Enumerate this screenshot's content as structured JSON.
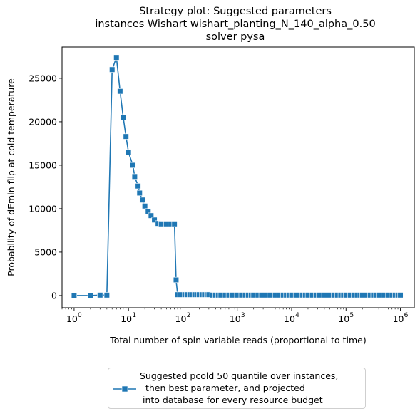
{
  "chart_data": {
    "type": "line",
    "title_lines": [
      "Strategy plot: Suggested parameters",
      "instances Wishart wishart_planting_N_140_alpha_0.50",
      "solver pysa"
    ],
    "xlabel": "Total number of spin variable reads (proportional to time)",
    "ylabel": "Probability of dEmin flip at cold temperature",
    "xscale": "log",
    "xlim": [
      0.6,
      1800000
    ],
    "ylim": [
      -1400,
      28600
    ],
    "x_ticks": [
      1,
      10,
      100,
      1000,
      10000,
      100000,
      1000000
    ],
    "x_tick_exponents": [
      "0",
      "1",
      "2",
      "3",
      "4",
      "5",
      "6"
    ],
    "y_ticks": [
      0,
      5000,
      10000,
      15000,
      20000,
      25000
    ],
    "y_tick_labels": [
      "0",
      "5000",
      "10000",
      "15000",
      "20000",
      "25000"
    ],
    "grid": false,
    "legend_position": "below",
    "series": [
      {
        "name": "Suggested pcold 50 quantile over instances,\n  then best parameter, and projected\n into database for every resource budget",
        "color": "#1f77b4",
        "marker": "square",
        "points": [
          [
            1,
            0
          ],
          [
            2,
            0
          ],
          [
            3,
            50
          ],
          [
            4,
            50
          ],
          [
            5,
            26000
          ],
          [
            6,
            27400
          ],
          [
            7,
            23500
          ],
          [
            8,
            20500
          ],
          [
            9,
            18300
          ],
          [
            10,
            16500
          ],
          [
            12,
            15000
          ],
          [
            13,
            13700
          ],
          [
            15,
            12600
          ],
          [
            16,
            11800
          ],
          [
            18,
            11000
          ],
          [
            20,
            10300
          ],
          [
            23,
            9700
          ],
          [
            26,
            9200
          ],
          [
            30,
            8700
          ],
          [
            35,
            8300
          ],
          [
            40,
            8250
          ],
          [
            50,
            8250
          ],
          [
            60,
            8250
          ],
          [
            70,
            8250
          ],
          [
            75,
            1800
          ],
          [
            80,
            100
          ],
          [
            90,
            100
          ],
          [
            100,
            100
          ],
          [
            110,
            100
          ],
          [
            120,
            100
          ],
          [
            135,
            100
          ],
          [
            150,
            100
          ],
          [
            165,
            100
          ],
          [
            185,
            100
          ],
          [
            200,
            100
          ],
          [
            225,
            100
          ],
          [
            250,
            100
          ],
          [
            280,
            100
          ],
          [
            300,
            100
          ],
          [
            350,
            50
          ],
          [
            400,
            50
          ],
          [
            450,
            50
          ],
          [
            500,
            50
          ],
          [
            600,
            50
          ],
          [
            700,
            50
          ],
          [
            800,
            50
          ],
          [
            900,
            50
          ],
          [
            1000,
            50
          ],
          [
            1200,
            50
          ],
          [
            1400,
            50
          ],
          [
            1600,
            50
          ],
          [
            1800,
            50
          ],
          [
            2000,
            50
          ],
          [
            2400,
            50
          ],
          [
            2800,
            50
          ],
          [
            3200,
            50
          ],
          [
            3600,
            50
          ],
          [
            4000,
            50
          ],
          [
            5000,
            50
          ],
          [
            6000,
            50
          ],
          [
            7000,
            50
          ],
          [
            8000,
            50
          ],
          [
            9000,
            50
          ],
          [
            10000,
            50
          ],
          [
            12000,
            50
          ],
          [
            14000,
            50
          ],
          [
            16000,
            50
          ],
          [
            18000,
            50
          ],
          [
            20000,
            50
          ],
          [
            24000,
            50
          ],
          [
            28000,
            50
          ],
          [
            32000,
            50
          ],
          [
            36000,
            50
          ],
          [
            40000,
            50
          ],
          [
            50000,
            50
          ],
          [
            60000,
            50
          ],
          [
            70000,
            50
          ],
          [
            80000,
            50
          ],
          [
            90000,
            50
          ],
          [
            100000,
            50
          ],
          [
            120000,
            50
          ],
          [
            140000,
            50
          ],
          [
            160000,
            50
          ],
          [
            180000,
            50
          ],
          [
            200000,
            50
          ],
          [
            240000,
            50
          ],
          [
            280000,
            50
          ],
          [
            320000,
            50
          ],
          [
            360000,
            50
          ],
          [
            400000,
            50
          ],
          [
            500000,
            50
          ],
          [
            600000,
            50
          ],
          [
            700000,
            50
          ],
          [
            800000,
            50
          ],
          [
            900000,
            50
          ],
          [
            1000000,
            50
          ]
        ]
      }
    ]
  }
}
